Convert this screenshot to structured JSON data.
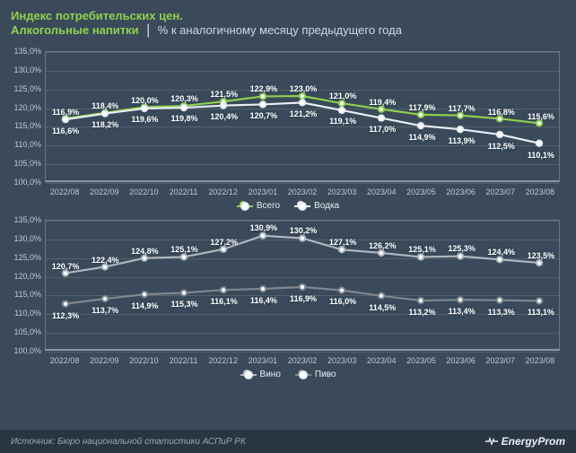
{
  "header": {
    "title_line1": "Индекс потребительских цен.",
    "title_line2": "Алкогольные напитки",
    "subtitle": "% к аналогичному месяцу предыдущего года"
  },
  "x_categories": [
    "2022/08",
    "2022/09",
    "2022/10",
    "2022/11",
    "2022/12",
    "2023/01",
    "2023/02",
    "2023/03",
    "2023/04",
    "2023/05",
    "2023/06",
    "2023/07",
    "2023/08"
  ],
  "axis": {
    "ymin": 100.0,
    "ymax": 135.0,
    "ystep": 5.0,
    "tick_color": "#c0c8d0",
    "grid_color": "#55616d",
    "label_fontsize": 9
  },
  "charts": [
    {
      "series": [
        {
          "name": "Всего",
          "color": "#8fd14f",
          "values": [
            116.9,
            118.4,
            120.0,
            120.3,
            121.5,
            122.9,
            123.0,
            121.0,
            119.4,
            117.9,
            117.7,
            116.8,
            115.6
          ],
          "label_pos": [
            "above",
            "above",
            "above",
            "above",
            "above",
            "above",
            "above",
            "above",
            "above",
            "above",
            "above",
            "above",
            "above"
          ]
        },
        {
          "name": "Водка",
          "color": "#e8eef4",
          "values": [
            116.6,
            118.2,
            119.6,
            119.8,
            120.4,
            120.7,
            121.2,
            119.1,
            117.0,
            114.9,
            113.9,
            112.5,
            110.1
          ],
          "label_pos": [
            "below",
            "below",
            "below",
            "below",
            "below",
            "below",
            "below",
            "below",
            "below",
            "below",
            "below",
            "below",
            "below"
          ]
        }
      ]
    },
    {
      "series": [
        {
          "name": "Вино",
          "color": "#b0b8c0",
          "values": [
            120.7,
            122.4,
            124.8,
            125.1,
            127.2,
            130.9,
            130.2,
            127.1,
            126.2,
            125.1,
            125.3,
            124.4,
            123.5
          ],
          "label_pos": [
            "above",
            "above",
            "above",
            "above",
            "above",
            "above",
            "above",
            "above",
            "above",
            "above",
            "above",
            "above",
            "above"
          ]
        },
        {
          "name": "Пиво",
          "color": "#808890",
          "values": [
            112.3,
            113.7,
            114.9,
            115.3,
            116.1,
            116.4,
            116.9,
            116.0,
            114.5,
            113.2,
            113.4,
            113.3,
            113.1
          ],
          "label_pos": [
            "below",
            "below",
            "below",
            "below",
            "below",
            "below",
            "below",
            "below",
            "below",
            "below",
            "below",
            "below",
            "below"
          ]
        }
      ]
    }
  ],
  "footer": {
    "source": "Источник: Бюро национальной статистики АСПиР РК",
    "brand": "EnergyProm"
  },
  "style": {
    "background": "#3a4a5a",
    "marker_radius": 3.2,
    "line_width": 2.2,
    "point_label_fontsize": 9
  }
}
